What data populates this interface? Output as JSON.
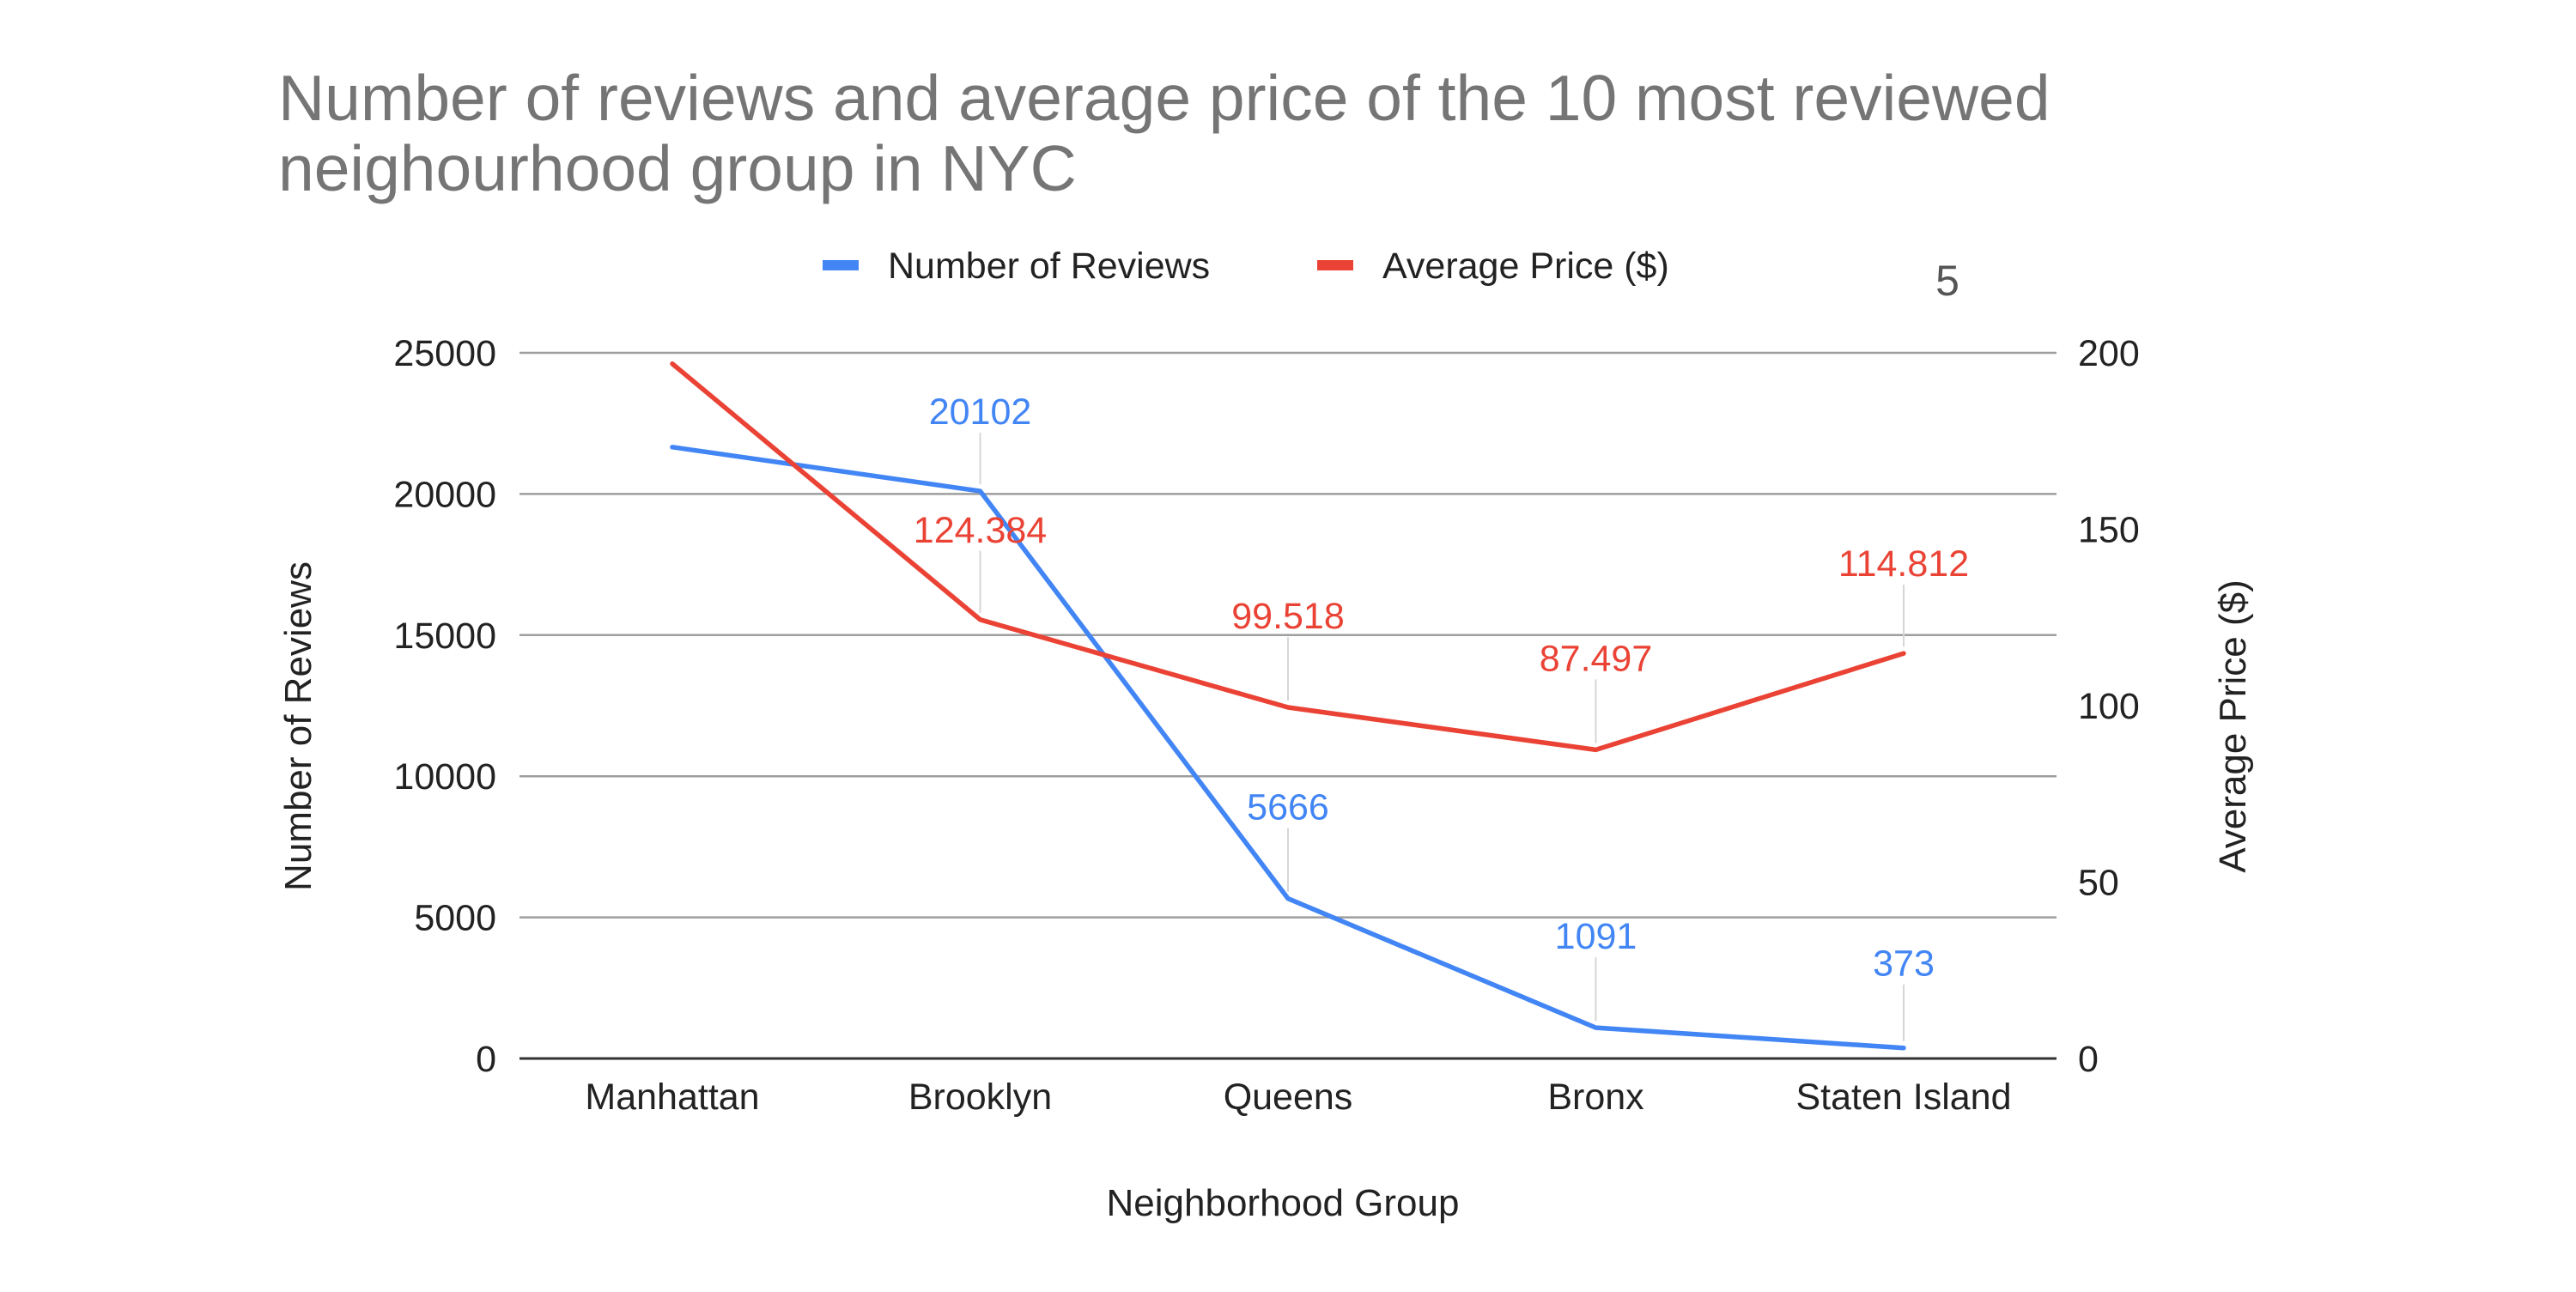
{
  "chart_data": {
    "type": "line",
    "title": "Number of reviews and average price of the 10 most reviewed neighourhood group in NYC",
    "title_lines": [
      "Number of reviews and average price of the 10 most reviewed",
      "neighourhood group in NYC"
    ],
    "annotation": "5",
    "xlabel": "Neighborhood Group",
    "ylabel": "Number of Reviews",
    "y2label": "Average Price ($)",
    "categories": [
      "Manhattan",
      "Brooklyn",
      "Queens",
      "Bronx",
      "Staten Island"
    ],
    "ylim": [
      0,
      25000
    ],
    "y2lim": [
      0,
      200
    ],
    "yticks": [
      0,
      5000,
      10000,
      15000,
      20000,
      25000
    ],
    "y2ticks": [
      0,
      50,
      100,
      150,
      200
    ],
    "grid": true,
    "legend_position": "top",
    "series": [
      {
        "name": "Number of Reviews",
        "axis": "left",
        "color": "#4285f4",
        "values": [
          21660,
          20102,
          5666,
          1091,
          373
        ],
        "labels": [
          "",
          "20102",
          "5666",
          "1091",
          "373"
        ]
      },
      {
        "name": "Average Price ($)",
        "axis": "right",
        "color": "#ea4335",
        "values": [
          196.9,
          124.384,
          99.518,
          87.497,
          114.812
        ],
        "labels": [
          "",
          "124.384",
          "99.518",
          "87.497",
          "114.812"
        ]
      }
    ]
  }
}
